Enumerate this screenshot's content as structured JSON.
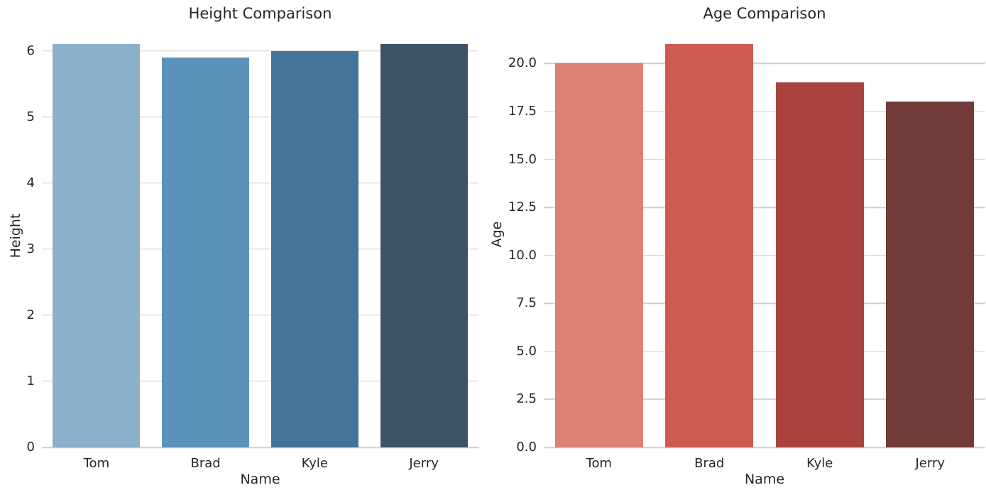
{
  "figure": {
    "background": "#ffffff",
    "text_color": "#262626",
    "grid_color": "#cfcfcf"
  },
  "chart_data": [
    {
      "type": "bar",
      "title": "Height Comparison",
      "xlabel": "Name",
      "ylabel": "Height",
      "categories": [
        "Tom",
        "Brad",
        "Kyle",
        "Jerry"
      ],
      "values": [
        6.1,
        5.9,
        6.0,
        6.1
      ],
      "ylim": [
        0,
        6.405
      ],
      "yticks": [
        0,
        1,
        2,
        3,
        4,
        5,
        6
      ],
      "ytick_labels": [
        "0",
        "1",
        "2",
        "3",
        "4",
        "5",
        "6"
      ],
      "bar_colors": [
        "#8bb0ca",
        "#5c93bc",
        "#45749b",
        "#3c5368"
      ],
      "bar_width_frac": 0.8,
      "grid": true,
      "legend": false
    },
    {
      "type": "bar",
      "title": "Age Comparison",
      "xlabel": "Name",
      "ylabel": "Age",
      "categories": [
        "Tom",
        "Brad",
        "Kyle",
        "Jerry"
      ],
      "values": [
        20,
        21,
        19,
        18
      ],
      "ylim": [
        0,
        22.05
      ],
      "yticks": [
        0,
        2.5,
        5,
        7.5,
        10,
        12.5,
        15,
        17.5,
        20
      ],
      "ytick_labels": [
        "0.0",
        "2.5",
        "5.0",
        "7.5",
        "10.0",
        "12.5",
        "15.0",
        "17.5",
        "20.0"
      ],
      "bar_colors": [
        "#df8172",
        "#cd5b51",
        "#a9423e",
        "#703b38"
      ],
      "bar_width_frac": 0.8,
      "grid": true,
      "legend": false
    }
  ]
}
